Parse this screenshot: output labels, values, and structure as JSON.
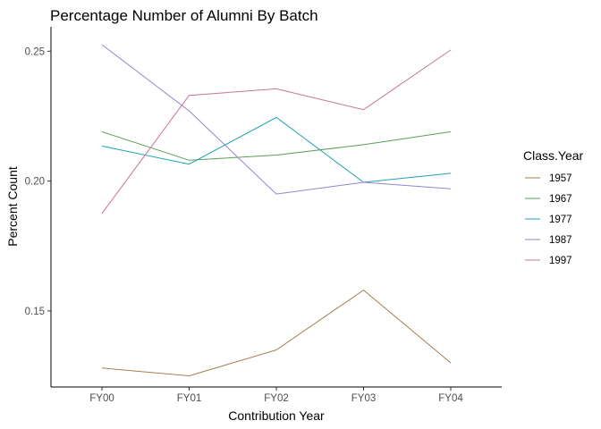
{
  "chart_data": {
    "type": "line",
    "title": "Percentage Number of Alumni By Batch",
    "xlabel": "Contribution Year",
    "ylabel": "Percent Count",
    "categories": [
      "FY00",
      "FY01",
      "FY02",
      "FY03",
      "FY04"
    ],
    "y_ticks": [
      "0.15",
      "0.20",
      "0.25"
    ],
    "y_tick_values": [
      0.15,
      0.2,
      0.25
    ],
    "ylim": [
      0.1207,
      0.2594
    ],
    "grid": false,
    "legend": {
      "title": "Class.Year",
      "placement": "right"
    },
    "series": [
      {
        "name": "1957",
        "color": "#A3804E",
        "values": [
          0.128,
          0.125,
          0.135,
          0.158,
          0.13
        ]
      },
      {
        "name": "1967",
        "color": "#5A9E53",
        "values": [
          0.219,
          0.208,
          0.21,
          0.214,
          0.219
        ]
      },
      {
        "name": "1977",
        "color": "#1FA1B4",
        "values": [
          0.2135,
          0.2065,
          0.2245,
          0.1995,
          0.203
        ]
      },
      {
        "name": "1987",
        "color": "#9482CF",
        "values": [
          0.2525,
          0.227,
          0.195,
          0.1995,
          0.197
        ]
      },
      {
        "name": "1997",
        "color": "#C8729B",
        "values": [
          0.1875,
          0.233,
          0.2355,
          0.2275,
          0.2505
        ]
      }
    ]
  }
}
